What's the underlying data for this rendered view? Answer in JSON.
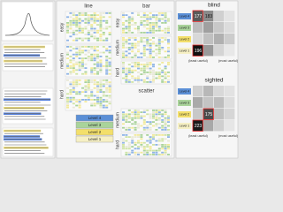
{
  "panels": {
    "line": {
      "title": "line",
      "rows": [
        "easy",
        "medium",
        "hard"
      ]
    },
    "bar": {
      "title": "bar",
      "rows": [
        "easy",
        "medium",
        "hard"
      ]
    },
    "scatter": {
      "title": "scatter",
      "rows": [
        "medium",
        "hard"
      ]
    }
  },
  "legend": [
    "Level 4",
    "Level 3",
    "Level 2",
    "Level 1"
  ],
  "heatmaps": [
    {
      "title": "blind",
      "levels": [
        "Level 4",
        "Level 3",
        "Level 2",
        "Level 1"
      ],
      "cells": [
        [
          "177",
          "183",
          null,
          null
        ],
        [
          null,
          null,
          null,
          null
        ],
        [
          null,
          null,
          null,
          null
        ],
        [
          "196",
          null,
          null,
          null
        ]
      ],
      "axis_labels": [
        "(least useful)",
        "(most useful)"
      ]
    },
    {
      "title": "sighted",
      "levels": [
        "Level 4",
        "Level 3",
        "Level 2",
        "Level 1"
      ],
      "cells": [
        [
          null,
          null,
          null,
          null
        ],
        [
          null,
          null,
          null,
          null
        ],
        [
          null,
          "175",
          null,
          null
        ],
        [
          "223",
          null,
          null,
          null
        ]
      ],
      "axis_labels": [
        "(least useful)",
        "(most useful)"
      ]
    }
  ]
}
